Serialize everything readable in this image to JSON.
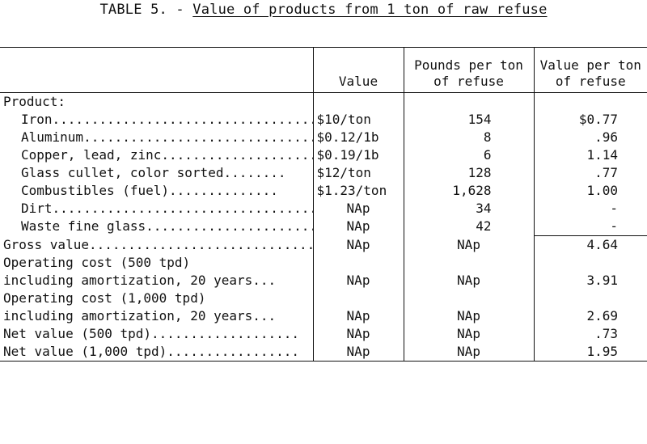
{
  "title_prefix": "TABLE 5. - ",
  "title_main": "Value of products from 1 ton of raw refuse",
  "headers": {
    "value": "Value",
    "pounds_line1": "Pounds per ton",
    "pounds_line2": "of refuse",
    "valueper_line1": "Value per ton",
    "valueper_line2": "of refuse"
  },
  "section_label": "Product:",
  "rows": [
    {
      "label": "Iron...................................",
      "value": "$10/ton",
      "pounds": "154",
      "valueper": "$0.77"
    },
    {
      "label": "Aluminum...............................",
      "value": "$0.12/1b",
      "pounds": "8",
      "valueper": ".96"
    },
    {
      "label": "Copper, lead, zinc.....................",
      "value": "$0.19/1b",
      "pounds": "6",
      "valueper": "1.14"
    },
    {
      "label": "Glass cullet, color sorted........",
      "value": "$12/ton",
      "pounds": "128",
      "valueper": ".77"
    },
    {
      "label": "Combustibles (fuel)..............",
      "value": "$1.23/ton",
      "pounds": "1,628",
      "valueper": "1.00"
    },
    {
      "label": "Dirt.......................................",
      "value": "NAp",
      "pounds": "34",
      "valueper": "-"
    },
    {
      "label": "Waste fine glass......................",
      "value": "NAp",
      "pounds": "42",
      "valueper": "-"
    }
  ],
  "gross": {
    "label": "Gross value..............................",
    "value": "NAp",
    "pounds": "NAp",
    "valueper": "4.64"
  },
  "op500": {
    "label1": "Operating cost (500 tpd)",
    "label2": " including amortization, 20 years...",
    "value": "NAp",
    "pounds": "NAp",
    "valueper": "3.91"
  },
  "op1000": {
    "label1": "Operating cost (1,000 tpd)",
    "label2": " including amortization, 20 years...",
    "value": "NAp",
    "pounds": "NAp",
    "valueper": "2.69"
  },
  "net500": {
    "label": "Net value (500 tpd)...................",
    "value": "NAp",
    "pounds": "NAp",
    "valueper": ".73"
  },
  "net1000": {
    "label": "Net value (1,000 tpd).................",
    "value": "NAp",
    "pounds": "NAp",
    "valueper": "1.95"
  }
}
